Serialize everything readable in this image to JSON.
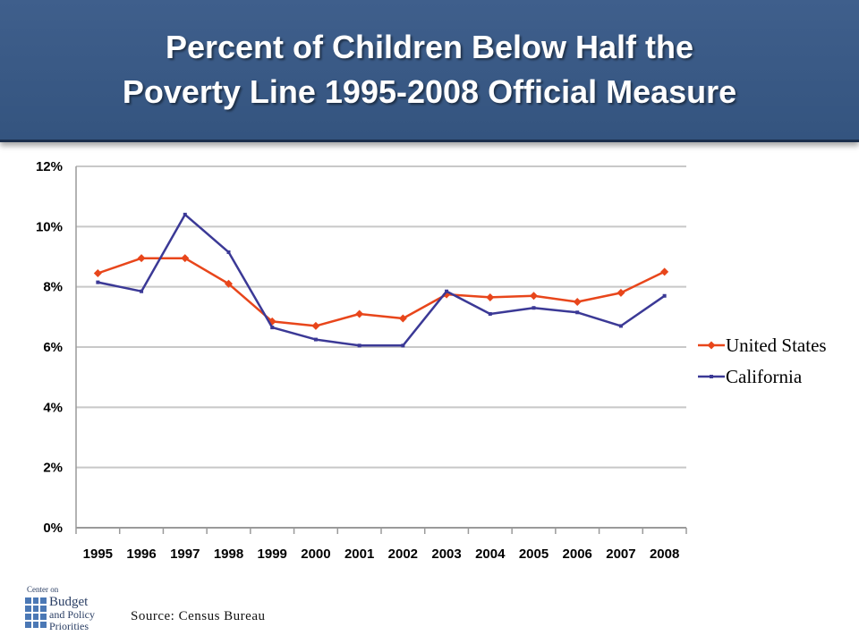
{
  "title": {
    "line1": "Percent of Children Below Half the",
    "line2": "Poverty Line 1995-2008 Official Measure"
  },
  "source": "Source: Census Bureau",
  "logo": {
    "line1": "Center on",
    "line2": "Budget",
    "line3": "and Policy",
    "line4": "Priorities"
  },
  "colors": {
    "title_band": "#3a5a86",
    "united_states": "#e8461b",
    "california": "#3b3996",
    "gridline": "#c8c8c8"
  },
  "chart_data": {
    "type": "line",
    "title": "Percent of Children Below Half the Poverty Line 1995-2008 Official Measure",
    "categories": [
      "1995",
      "1996",
      "1997",
      "1998",
      "1999",
      "2000",
      "2001",
      "2002",
      "2003",
      "2004",
      "2005",
      "2006",
      "2007",
      "2008"
    ],
    "y_ticks": [
      "0%",
      "2%",
      "4%",
      "6%",
      "8%",
      "10%",
      "12%"
    ],
    "ylim": [
      0,
      12
    ],
    "grid": true,
    "legend_position": "right",
    "series": [
      {
        "name": "United States",
        "marker": "diamond",
        "color": "#e8461b",
        "values": [
          8.45,
          8.95,
          8.95,
          8.1,
          6.85,
          6.7,
          7.1,
          6.95,
          7.75,
          7.65,
          7.7,
          7.5,
          7.8,
          8.5
        ]
      },
      {
        "name": "California",
        "marker": "square",
        "color": "#3b3996",
        "values": [
          8.15,
          7.85,
          10.4,
          9.15,
          6.65,
          6.25,
          6.05,
          6.05,
          7.85,
          7.1,
          7.3,
          7.15,
          6.7,
          7.7
        ]
      }
    ]
  }
}
